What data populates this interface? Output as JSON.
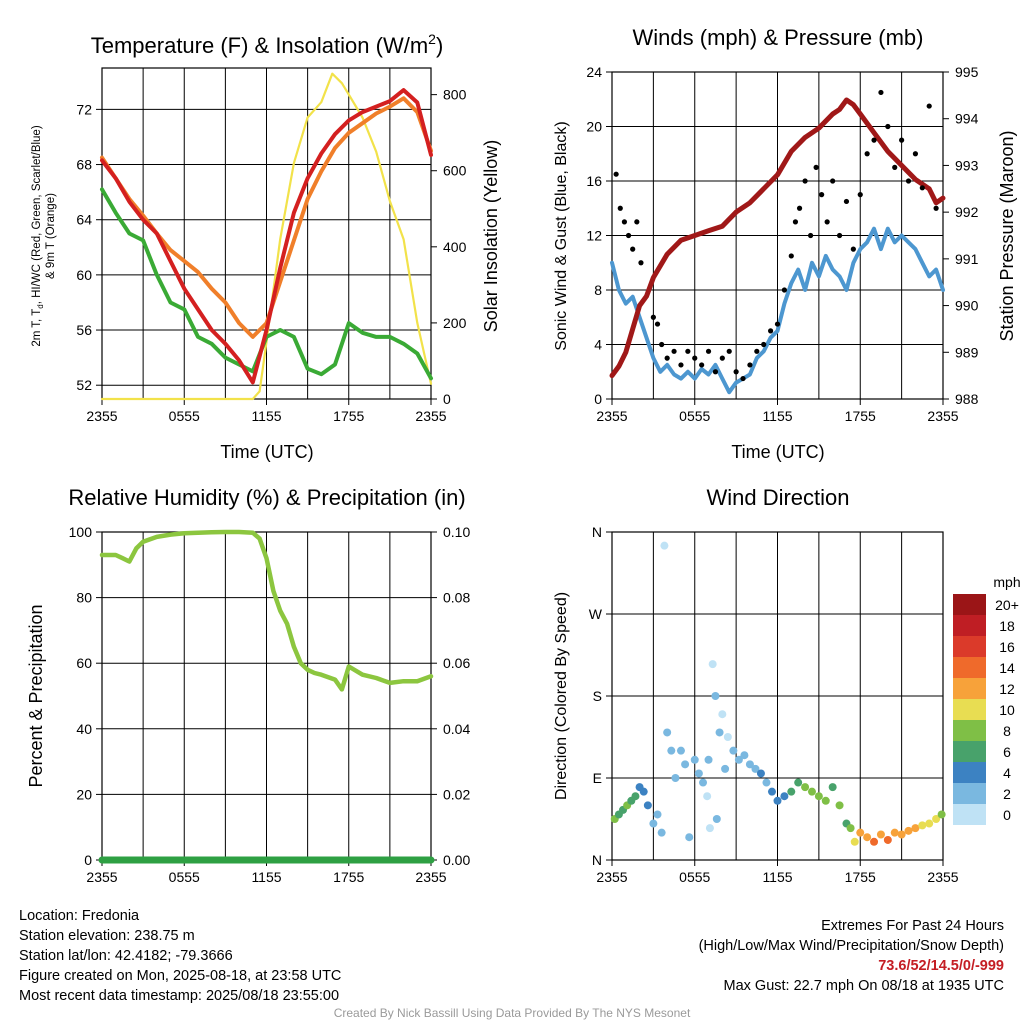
{
  "panels": {
    "temperature": {
      "title_main": "Temperature (F) & Insolation (W/m",
      "title_sup": "2",
      "title_end": ")",
      "ylabel_left_1": "2m T, T",
      "ylabel_left_sub": "d",
      "ylabel_left_2": ", HI/WC (Red, Green, Scarlet/Blue)",
      "ylabel_left_3": "& 9m T (Orange)",
      "ylabel_right": "Solar Insolation (Yellow)",
      "xlabel": "Time (UTC)"
    },
    "winds": {
      "title": "Winds (mph) & Pressure (mb)",
      "ylabel_left": "Sonic Wind & Gust (Blue, Black)",
      "ylabel_right": "Station Pressure (Maroon)",
      "xlabel": "Time (UTC)"
    },
    "humidity": {
      "title": "Relative Humidity (%) & Precipitation (in)",
      "ylabel_left": "Percent & Precipitation"
    },
    "direction": {
      "title": "Wind Direction",
      "ylabel_left": "Direction (Colored By Speed)",
      "legend_title": "mph"
    }
  },
  "info": {
    "location": "Location: Fredonia",
    "elevation": "Station elevation: 238.75 m",
    "latlon": "Station lat/lon: 42.4182; -79.3666",
    "created": "Figure created on Mon, 2025-08-18, at 23:58 UTC",
    "recent": "Most recent data timestamp: 2025/08/18 23:55:00"
  },
  "extremes": {
    "title": "Extremes For Past 24 Hours",
    "subtitle": "(High/Low/Max Wind/Precipitation/Snow Depth)",
    "values": "73.6/52/14.5/0/-999",
    "max_gust": "Max Gust: 22.7 mph On 08/18 at 1935 UTC"
  },
  "credit": "Created By Nick Bassill Using Data Provided By The NYS Mesonet",
  "colors": {
    "temp_red": "#d42020",
    "dewpoint_green": "#3aaa35",
    "temp9m_orange": "#f07f2a",
    "solar_yellow": "#f2e24a",
    "wind_blue": "#4d97d0",
    "gust_black": "#000000",
    "pressure_maroon": "#a01818",
    "rh_green": "#8cc63f",
    "precip_green": "#2ea043"
  },
  "chart_data": [
    {
      "id": "temperature",
      "type": "line",
      "x_ticks": [
        "2355",
        "0555",
        "1155",
        "1755",
        "2355"
      ],
      "x_unit": "hours since 2355 UTC",
      "xlim": [
        0,
        24
      ],
      "ylim_left": [
        51,
        75
      ],
      "yticks_left": [
        52,
        56,
        60,
        64,
        68,
        72
      ],
      "ylim_right": [
        0,
        870
      ],
      "yticks_right": [
        0,
        200,
        400,
        600,
        800
      ],
      "series": [
        {
          "color": "#d42020",
          "axis": "left",
          "x": [
            0,
            1,
            2,
            3,
            4,
            5,
            6,
            7,
            8,
            9,
            10,
            11,
            12,
            13,
            14,
            15,
            16,
            17,
            18,
            19,
            20,
            21,
            22,
            23,
            24
          ],
          "values": [
            68.3,
            67,
            65.3,
            64,
            63,
            61,
            59,
            57.5,
            56,
            55,
            53.8,
            52.2,
            56,
            60.5,
            64.5,
            67,
            68.8,
            70.2,
            71.2,
            71.8,
            72.2,
            72.6,
            73.4,
            72.5,
            68.7
          ]
        },
        {
          "color": "#3aaa35",
          "axis": "left",
          "x": [
            0,
            1,
            2,
            3,
            4,
            5,
            6,
            7,
            8,
            9,
            10,
            11,
            12,
            13,
            14,
            15,
            16,
            17,
            18,
            19,
            20,
            21,
            22,
            23,
            24
          ],
          "values": [
            66.2,
            64.5,
            63,
            62.5,
            60,
            58,
            57.5,
            55.5,
            55,
            54,
            53.5,
            53,
            55.5,
            56,
            55.5,
            53.2,
            52.8,
            53.5,
            56.5,
            55.8,
            55.5,
            55.5,
            55,
            54.3,
            52.5
          ]
        },
        {
          "color": "#f07f2a",
          "axis": "left",
          "x": [
            0,
            1,
            2,
            3,
            4,
            5,
            6,
            7,
            8,
            9,
            10,
            11,
            12,
            13,
            14,
            15,
            16,
            17,
            18,
            19,
            20,
            21,
            22,
            23,
            24
          ],
          "values": [
            68.5,
            67,
            65.5,
            64.3,
            63,
            61.8,
            61,
            60.2,
            59,
            58,
            56.5,
            55.5,
            56.5,
            59.5,
            62.5,
            65.5,
            67.5,
            69.2,
            70.3,
            71,
            71.7,
            72.2,
            72.8,
            71.8,
            69
          ]
        },
        {
          "color": "#f2e24a",
          "axis": "right",
          "x": [
            0,
            9,
            10,
            11,
            11.5,
            12,
            13,
            14,
            15,
            16,
            16.8,
            17.5,
            18,
            19,
            20,
            21,
            22,
            23,
            23.5,
            24
          ],
          "values": [
            0,
            0,
            0,
            0,
            20,
            150,
            420,
            620,
            740,
            780,
            855,
            830,
            800,
            740,
            650,
            520,
            420,
            200,
            120,
            40
          ]
        }
      ]
    },
    {
      "id": "winds",
      "type": "line",
      "x_ticks": [
        "2355",
        "0555",
        "1155",
        "1755",
        "2355"
      ],
      "xlim": [
        0,
        24
      ],
      "ylim_left": [
        0,
        24
      ],
      "yticks_left": [
        0,
        4,
        8,
        12,
        16,
        20,
        24
      ],
      "ylim_right": [
        988,
        995
      ],
      "yticks_right": [
        988,
        989,
        990,
        991,
        992,
        993,
        994,
        995
      ],
      "series": [
        {
          "color": "#4d97d0",
          "axis": "left",
          "x": [
            0,
            0.5,
            1,
            1.5,
            2,
            2.5,
            3,
            3.5,
            4,
            4.5,
            5,
            5.5,
            6,
            6.5,
            7,
            7.5,
            8,
            8.5,
            9,
            9.5,
            10,
            10.5,
            11,
            11.5,
            12,
            12.5,
            13,
            13.5,
            14,
            14.5,
            15,
            15.5,
            16,
            16.5,
            17,
            17.5,
            18,
            18.5,
            19,
            19.5,
            20,
            20.5,
            21,
            21.5,
            22,
            22.5,
            23,
            23.5,
            24
          ],
          "values": [
            10,
            8,
            7,
            7.5,
            6,
            4.5,
            3,
            2,
            2.5,
            1.8,
            1.5,
            2,
            1.5,
            2.2,
            1.8,
            2.5,
            1.5,
            0.5,
            1.2,
            1.5,
            1.8,
            3,
            3.5,
            4.5,
            5,
            7,
            8.5,
            9.5,
            8,
            10,
            9,
            10.5,
            9.5,
            9,
            8,
            10,
            11,
            11.5,
            12.5,
            11,
            12.5,
            11.5,
            12,
            11.5,
            11,
            10,
            9,
            9.5,
            8
          ]
        },
        {
          "color": "#a01818",
          "axis": "right",
          "x": [
            0,
            0.5,
            1,
            1.5,
            2,
            2.5,
            3,
            4,
            5,
            6,
            7,
            8,
            9,
            10,
            11,
            12,
            13,
            14,
            15,
            16,
            16.5,
            17,
            17.5,
            18,
            19,
            20,
            21,
            22,
            23,
            23.5,
            24
          ],
          "values": [
            988.5,
            988.7,
            989,
            989.5,
            990,
            990.2,
            990.6,
            991.1,
            991.4,
            991.5,
            991.6,
            991.7,
            992,
            992.2,
            992.5,
            992.8,
            993.3,
            993.6,
            993.8,
            994.1,
            994.2,
            994.4,
            994.3,
            994.1,
            993.7,
            993.3,
            993,
            992.7,
            992.5,
            992.2,
            992.3
          ]
        }
      ],
      "gust_points": {
        "color": "#000000",
        "x": [
          0.3,
          0.6,
          0.9,
          1.2,
          1.5,
          1.8,
          2.1,
          3,
          3.3,
          3.6,
          4,
          4.5,
          5,
          5.5,
          6,
          6.5,
          7,
          7.5,
          8,
          8.5,
          9,
          9.5,
          10,
          10.5,
          11,
          11.5,
          12,
          12.5,
          13,
          13.3,
          13.6,
          14,
          14.4,
          14.8,
          15.2,
          15.6,
          16,
          16.5,
          17,
          17.5,
          18,
          18.5,
          19,
          19.5,
          20,
          20.5,
          21,
          21.5,
          22,
          22.5,
          23,
          23.5
        ],
        "values": [
          16.5,
          14,
          13,
          12,
          11,
          13,
          10,
          6,
          5.5,
          4,
          3,
          3.5,
          2.5,
          3.5,
          3,
          2.5,
          3.5,
          2,
          3,
          3.5,
          2,
          1.5,
          2.5,
          3.5,
          4,
          5,
          5.5,
          8,
          10.5,
          13,
          14,
          16,
          12,
          17,
          15,
          13,
          16,
          12,
          14.5,
          11,
          15,
          18,
          19,
          22.5,
          20,
          17,
          19,
          16,
          18,
          15.5,
          21.5,
          14
        ]
      }
    },
    {
      "id": "humidity",
      "type": "line",
      "x_ticks": [
        "2355",
        "0555",
        "1155",
        "1755",
        "2355"
      ],
      "xlim": [
        0,
        24
      ],
      "ylim_left": [
        0,
        100
      ],
      "yticks_left": [
        0,
        20,
        40,
        60,
        80,
        100
      ],
      "ylim_right": [
        0,
        0.1
      ],
      "yticks_right": [
        "0.00",
        "0.02",
        "0.04",
        "0.06",
        "0.08",
        "0.10"
      ],
      "series": [
        {
          "color": "#8cc63f",
          "axis": "left",
          "x": [
            0,
            1,
            1.5,
            2,
            2.5,
            3,
            4,
            5,
            6,
            7,
            8,
            9,
            10,
            11,
            11.5,
            12,
            12.5,
            13,
            13.5,
            14,
            14.5,
            15,
            15.5,
            16,
            17,
            17.5,
            18,
            19,
            20,
            21,
            22,
            23,
            24
          ],
          "values": [
            93,
            93,
            92,
            91,
            95,
            97,
            98.5,
            99.2,
            99.6,
            99.8,
            99.9,
            100,
            100,
            99.8,
            98,
            92,
            82,
            76,
            72,
            65,
            60,
            58,
            57,
            56.5,
            55,
            52,
            59,
            56.5,
            55.5,
            54,
            54.5,
            54.5,
            56
          ]
        },
        {
          "color": "#2ea043",
          "axis": "right",
          "x": [
            0,
            24
          ],
          "values": [
            0,
            0
          ]
        }
      ]
    },
    {
      "id": "direction",
      "type": "scatter",
      "x_ticks": [
        "2355",
        "0555",
        "1155",
        "1755",
        "2355"
      ],
      "xlim": [
        0,
        24
      ],
      "ylim": [
        0,
        360
      ],
      "yticks": [
        "N",
        "E",
        "S",
        "W",
        "N"
      ],
      "legend": {
        "title": "mph",
        "labels": [
          "20+",
          "18",
          "16",
          "14",
          "12",
          "10",
          "8",
          "6",
          "4",
          "2",
          "0"
        ],
        "colors": [
          "#9b1517",
          "#bf1e24",
          "#db3a2a",
          "#ef6a2b",
          "#f7a23a",
          "#e8dd52",
          "#7fbf46",
          "#48a26b",
          "#3c82c2",
          "#7ab8e0",
          "#bfe2f5"
        ]
      },
      "points": [
        {
          "x": 0.2,
          "y": 45,
          "s": 8
        },
        {
          "x": 0.5,
          "y": 50,
          "s": 7
        },
        {
          "x": 0.8,
          "y": 55,
          "s": 6
        },
        {
          "x": 1.1,
          "y": 60,
          "s": 8
        },
        {
          "x": 1.4,
          "y": 65,
          "s": 7
        },
        {
          "x": 1.7,
          "y": 70,
          "s": 6
        },
        {
          "x": 2.0,
          "y": 80,
          "s": 5
        },
        {
          "x": 2.3,
          "y": 75,
          "s": 4
        },
        {
          "x": 2.6,
          "y": 60,
          "s": 4
        },
        {
          "x": 3.0,
          "y": 40,
          "s": 3
        },
        {
          "x": 3.3,
          "y": 50,
          "s": 3
        },
        {
          "x": 3.6,
          "y": 30,
          "s": 2
        },
        {
          "x": 3.8,
          "y": 345,
          "s": 1
        },
        {
          "x": 4.0,
          "y": 140,
          "s": 2
        },
        {
          "x": 4.3,
          "y": 120,
          "s": 3
        },
        {
          "x": 4.6,
          "y": 90,
          "s": 3
        },
        {
          "x": 5.0,
          "y": 120,
          "s": 2
        },
        {
          "x": 5.3,
          "y": 105,
          "s": 3
        },
        {
          "x": 5.6,
          "y": 25,
          "s": 3
        },
        {
          "x": 6.0,
          "y": 110,
          "s": 2
        },
        {
          "x": 6.3,
          "y": 95,
          "s": 3
        },
        {
          "x": 6.6,
          "y": 85,
          "s": 2
        },
        {
          "x": 6.9,
          "y": 70,
          "s": 1
        },
        {
          "x": 7.0,
          "y": 110,
          "s": 2
        },
        {
          "x": 7.1,
          "y": 35,
          "s": 1
        },
        {
          "x": 7.3,
          "y": 215,
          "s": 1
        },
        {
          "x": 7.5,
          "y": 180,
          "s": 2
        },
        {
          "x": 7.6,
          "y": 45,
          "s": 2
        },
        {
          "x": 7.8,
          "y": 140,
          "s": 2
        },
        {
          "x": 8.0,
          "y": 160,
          "s": 1
        },
        {
          "x": 8.2,
          "y": 100,
          "s": 2
        },
        {
          "x": 8.4,
          "y": 135,
          "s": 1
        },
        {
          "x": 8.8,
          "y": 120,
          "s": 3
        },
        {
          "x": 9.2,
          "y": 110,
          "s": 2
        },
        {
          "x": 9.6,
          "y": 115,
          "s": 3
        },
        {
          "x": 10.0,
          "y": 105,
          "s": 2
        },
        {
          "x": 10.4,
          "y": 100,
          "s": 3
        },
        {
          "x": 10.8,
          "y": 95,
          "s": 4
        },
        {
          "x": 11.2,
          "y": 85,
          "s": 3
        },
        {
          "x": 11.6,
          "y": 75,
          "s": 4
        },
        {
          "x": 12.0,
          "y": 65,
          "s": 4
        },
        {
          "x": 12.5,
          "y": 70,
          "s": 5
        },
        {
          "x": 13.0,
          "y": 75,
          "s": 6
        },
        {
          "x": 13.5,
          "y": 85,
          "s": 7
        },
        {
          "x": 14.0,
          "y": 80,
          "s": 8
        },
        {
          "x": 14.5,
          "y": 75,
          "s": 9
        },
        {
          "x": 15.0,
          "y": 70,
          "s": 8
        },
        {
          "x": 15.5,
          "y": 65,
          "s": 9
        },
        {
          "x": 16.0,
          "y": 80,
          "s": 7
        },
        {
          "x": 16.5,
          "y": 60,
          "s": 8
        },
        {
          "x": 17.0,
          "y": 40,
          "s": 6
        },
        {
          "x": 17.3,
          "y": 35,
          "s": 8
        },
        {
          "x": 17.6,
          "y": 20,
          "s": 10
        },
        {
          "x": 18.0,
          "y": 30,
          "s": 12
        },
        {
          "x": 18.5,
          "y": 25,
          "s": 13
        },
        {
          "x": 19.0,
          "y": 20,
          "s": 14
        },
        {
          "x": 19.5,
          "y": 28,
          "s": 12
        },
        {
          "x": 20.0,
          "y": 22,
          "s": 15
        },
        {
          "x": 20.5,
          "y": 30,
          "s": 13
        },
        {
          "x": 21.0,
          "y": 28,
          "s": 12
        },
        {
          "x": 21.5,
          "y": 32,
          "s": 13
        },
        {
          "x": 22.0,
          "y": 35,
          "s": 12
        },
        {
          "x": 22.5,
          "y": 38,
          "s": 11
        },
        {
          "x": 23.0,
          "y": 40,
          "s": 10
        },
        {
          "x": 23.5,
          "y": 45,
          "s": 10
        },
        {
          "x": 23.9,
          "y": 50,
          "s": 8
        }
      ]
    }
  ]
}
